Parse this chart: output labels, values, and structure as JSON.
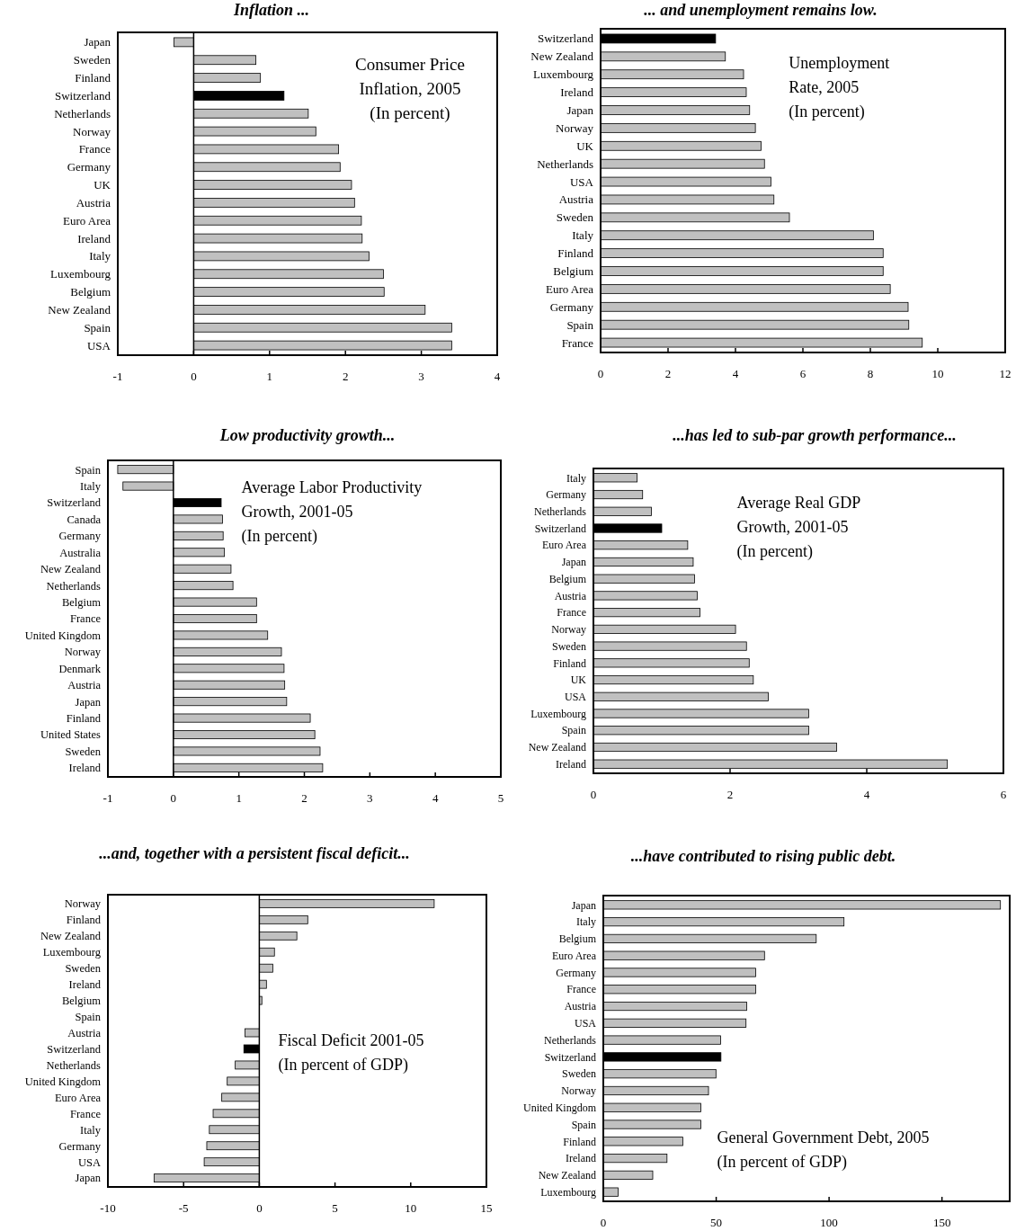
{
  "chart_data": [
    {
      "type": "bar",
      "orientation": "horizontal",
      "title": "Inflation ...",
      "annotations": [
        "Consumer Price",
        "Inflation, 2005",
        "(In percent)"
      ],
      "categories": [
        "Japan",
        "Sweden",
        "Finland",
        "Switzerland",
        "Netherlands",
        "Norway",
        "France",
        "Germany",
        "UK",
        "Austria",
        "Euro Area",
        "Ireland",
        "Italy",
        "Luxembourg",
        "Belgium",
        "New Zealand",
        "Spain",
        "USA"
      ],
      "values": [
        -0.26,
        0.82,
        0.88,
        1.19,
        1.51,
        1.61,
        1.91,
        1.93,
        2.08,
        2.12,
        2.21,
        2.22,
        2.31,
        2.5,
        2.51,
        3.05,
        3.4,
        3.4
      ],
      "colors": [
        "#c0c0c0",
        "#c0c0c0",
        "#c0c0c0",
        "#000000",
        "#c0c0c0",
        "#c0c0c0",
        "#c0c0c0",
        "#c0c0c0",
        "#c0c0c0",
        "#c0c0c0",
        "#c0c0c0",
        "#c0c0c0",
        "#c0c0c0",
        "#c0c0c0",
        "#c0c0c0",
        "#c0c0c0",
        "#c0c0c0",
        "#c0c0c0"
      ],
      "xlim": [
        -1,
        4
      ],
      "xticks": [
        -1,
        0,
        1,
        2,
        3,
        4
      ]
    },
    {
      "type": "bar",
      "orientation": "horizontal",
      "title": "... and unemployment remains low.",
      "annotations": [
        "Unemployment",
        "Rate, 2005",
        "(In percent)"
      ],
      "categories": [
        "Switzerland",
        "New Zealand",
        "Luxembourg",
        "Ireland",
        "Japan",
        "Norway",
        "UK",
        "Netherlands",
        "USA",
        "Austria",
        "Sweden",
        "Italy",
        "Finland",
        "Belgium",
        "Euro Area",
        "Germany",
        "Spain",
        "France"
      ],
      "values": [
        3.41,
        3.7,
        4.24,
        4.32,
        4.42,
        4.59,
        4.76,
        4.86,
        5.05,
        5.14,
        5.6,
        8.09,
        8.38,
        8.38,
        8.59,
        9.12,
        9.14,
        9.54
      ],
      "colors": [
        "#000000",
        "#c0c0c0",
        "#c0c0c0",
        "#c0c0c0",
        "#c0c0c0",
        "#c0c0c0",
        "#c0c0c0",
        "#c0c0c0",
        "#c0c0c0",
        "#c0c0c0",
        "#c0c0c0",
        "#c0c0c0",
        "#c0c0c0",
        "#c0c0c0",
        "#c0c0c0",
        "#c0c0c0",
        "#c0c0c0",
        "#c0c0c0"
      ],
      "xlim": [
        0,
        12
      ],
      "xticks": [
        0,
        2,
        4,
        6,
        8,
        10,
        12
      ]
    },
    {
      "type": "bar",
      "orientation": "horizontal",
      "title": "Low productivity growth...",
      "annotations": [
        "Average Labor Productivity",
        "Growth, 2001-05",
        "(In percent)"
      ],
      "categories": [
        "Spain",
        "Italy",
        "Switzerland",
        "Canada",
        "Germany",
        "Australia",
        "New Zealand",
        "Netherlands",
        "Belgium",
        "France",
        "United Kingdom",
        "Norway",
        "Denmark",
        "Austria",
        "Japan",
        "Finland",
        "United States",
        "Sweden",
        "Ireland"
      ],
      "values": [
        -0.85,
        -0.77,
        0.73,
        0.75,
        0.76,
        0.78,
        0.88,
        0.91,
        1.27,
        1.27,
        1.44,
        1.65,
        1.69,
        1.7,
        1.73,
        2.09,
        2.16,
        2.24,
        2.28
      ],
      "colors": [
        "#c0c0c0",
        "#c0c0c0",
        "#000000",
        "#c0c0c0",
        "#c0c0c0",
        "#c0c0c0",
        "#c0c0c0",
        "#c0c0c0",
        "#c0c0c0",
        "#c0c0c0",
        "#c0c0c0",
        "#c0c0c0",
        "#c0c0c0",
        "#c0c0c0",
        "#c0c0c0",
        "#c0c0c0",
        "#c0c0c0",
        "#c0c0c0",
        "#c0c0c0"
      ],
      "xlim": [
        -1,
        5
      ],
      "xticks": [
        -1,
        0,
        1,
        2,
        3,
        4,
        5
      ]
    },
    {
      "type": "bar",
      "orientation": "horizontal",
      "title": "...has led to sub-par growth performance...",
      "annotations": [
        "Average Real GDP",
        "Growth, 2001-05",
        "(In percent)"
      ],
      "categories": [
        "Italy",
        "Germany",
        "Netherlands",
        "Switzerland",
        "Euro Area",
        "Japan",
        "Belgium",
        "Austria",
        "France",
        "Norway",
        "Sweden",
        "Finland",
        "UK",
        "USA",
        "Luxembourg",
        "Spain",
        "New Zealand",
        "Ireland"
      ],
      "values": [
        0.64,
        0.72,
        0.85,
        1.0,
        1.38,
        1.46,
        1.48,
        1.52,
        1.56,
        2.08,
        2.24,
        2.28,
        2.34,
        2.56,
        3.15,
        3.15,
        3.56,
        5.18
      ],
      "colors": [
        "#c0c0c0",
        "#c0c0c0",
        "#c0c0c0",
        "#000000",
        "#c0c0c0",
        "#c0c0c0",
        "#c0c0c0",
        "#c0c0c0",
        "#c0c0c0",
        "#c0c0c0",
        "#c0c0c0",
        "#c0c0c0",
        "#c0c0c0",
        "#c0c0c0",
        "#c0c0c0",
        "#c0c0c0",
        "#c0c0c0",
        "#c0c0c0"
      ],
      "xlim": [
        0,
        6
      ],
      "xticks": [
        0,
        2,
        4,
        6
      ]
    },
    {
      "type": "bar",
      "orientation": "horizontal",
      "title": "...and, together with a persistent fiscal deficit...",
      "annotations": [
        "Fiscal Deficit 2001-05",
        "(In percent of GDP)"
      ],
      "categories": [
        "Norway",
        "Finland",
        "New Zealand",
        "Luxembourg",
        "Sweden",
        "Ireland",
        "Belgium",
        "Spain",
        "Austria",
        "Switzerland",
        "Netherlands",
        "United Kingdom",
        "Euro Area",
        "France",
        "Italy",
        "Germany",
        "USA",
        "Japan"
      ],
      "values": [
        11.55,
        3.2,
        2.48,
        1.0,
        0.89,
        0.47,
        0.17,
        0,
        -0.95,
        -1.02,
        -1.59,
        -2.12,
        -2.48,
        -3.05,
        -3.3,
        -3.47,
        -3.64,
        -6.95
      ],
      "colors": [
        "#c0c0c0",
        "#c0c0c0",
        "#c0c0c0",
        "#c0c0c0",
        "#c0c0c0",
        "#c0c0c0",
        "#c0c0c0",
        "#c0c0c0",
        "#c0c0c0",
        "#000000",
        "#c0c0c0",
        "#c0c0c0",
        "#c0c0c0",
        "#c0c0c0",
        "#c0c0c0",
        "#c0c0c0",
        "#c0c0c0",
        "#c0c0c0"
      ],
      "xlim": [
        -10,
        15
      ],
      "xticks": [
        -10,
        -5,
        0,
        5,
        10,
        15
      ]
    },
    {
      "type": "bar",
      "orientation": "horizontal",
      "title": "...have contributed to rising public debt.",
      "annotations": [
        "General Government Debt, 2005",
        "(In percent of GDP)"
      ],
      "categories": [
        "Japan",
        "Italy",
        "Belgium",
        "Euro Area",
        "Germany",
        "France",
        "Austria",
        "USA",
        "Netherlands",
        "Switzerland",
        "Sweden",
        "Norway",
        "United Kingdom",
        "Spain",
        "Finland",
        "Ireland",
        "New Zealand",
        "Luxembourg"
      ],
      "values": [
        175.9,
        106.6,
        94.3,
        71.4,
        67.5,
        67.5,
        63.5,
        63.2,
        52.0,
        52.1,
        49.9,
        46.6,
        43.2,
        43.2,
        35.2,
        28.2,
        21.9,
        6.6
      ],
      "colors": [
        "#c0c0c0",
        "#c0c0c0",
        "#c0c0c0",
        "#c0c0c0",
        "#c0c0c0",
        "#c0c0c0",
        "#c0c0c0",
        "#c0c0c0",
        "#c0c0c0",
        "#000000",
        "#c0c0c0",
        "#c0c0c0",
        "#c0c0c0",
        "#c0c0c0",
        "#c0c0c0",
        "#c0c0c0",
        "#c0c0c0",
        "#c0c0c0"
      ],
      "xlim": [
        0,
        180
      ],
      "xticks": [
        0,
        50,
        100,
        150
      ]
    }
  ]
}
